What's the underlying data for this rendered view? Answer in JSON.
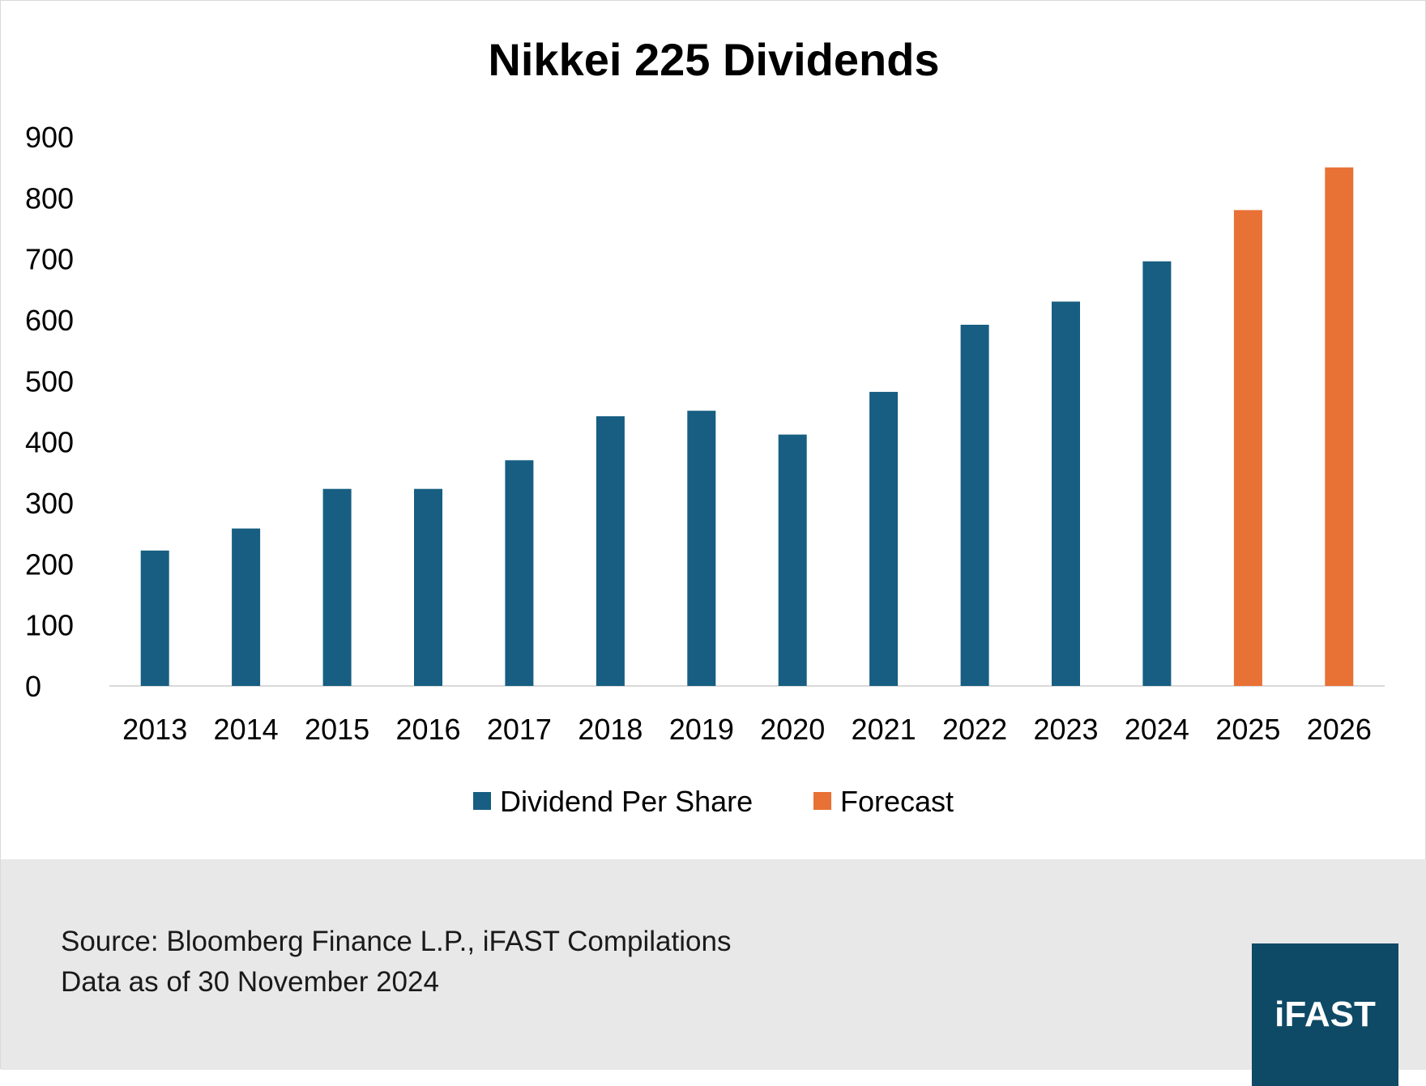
{
  "chart_data": {
    "type": "bar",
    "title": "Nikkei 225 Dividends",
    "categories": [
      "2013",
      "2014",
      "2015",
      "2016",
      "2017",
      "2018",
      "2019",
      "2020",
      "2021",
      "2022",
      "2023",
      "2024",
      "2025",
      "2026"
    ],
    "series": [
      {
        "name": "Dividend Per Share",
        "color": "#175e82",
        "values": [
          222,
          258,
          323,
          323,
          370,
          442,
          451,
          412,
          482,
          592,
          630,
          696,
          null,
          null
        ]
      },
      {
        "name": "Forecast",
        "color": "#e87135",
        "values": [
          null,
          null,
          null,
          null,
          null,
          null,
          null,
          null,
          null,
          null,
          null,
          null,
          780,
          850
        ]
      }
    ],
    "ylim": [
      0,
      900
    ],
    "yticks": [
      0,
      100,
      200,
      300,
      400,
      500,
      600,
      700,
      800,
      900
    ],
    "xlabel": "",
    "ylabel": "",
    "grid": false,
    "legend_position": "bottom"
  },
  "footer": {
    "source": "Source: Bloomberg Finance L.P., iFAST Compilations",
    "date": "Data as of 30 November 2024"
  },
  "logo": {
    "text": "iFAST"
  }
}
